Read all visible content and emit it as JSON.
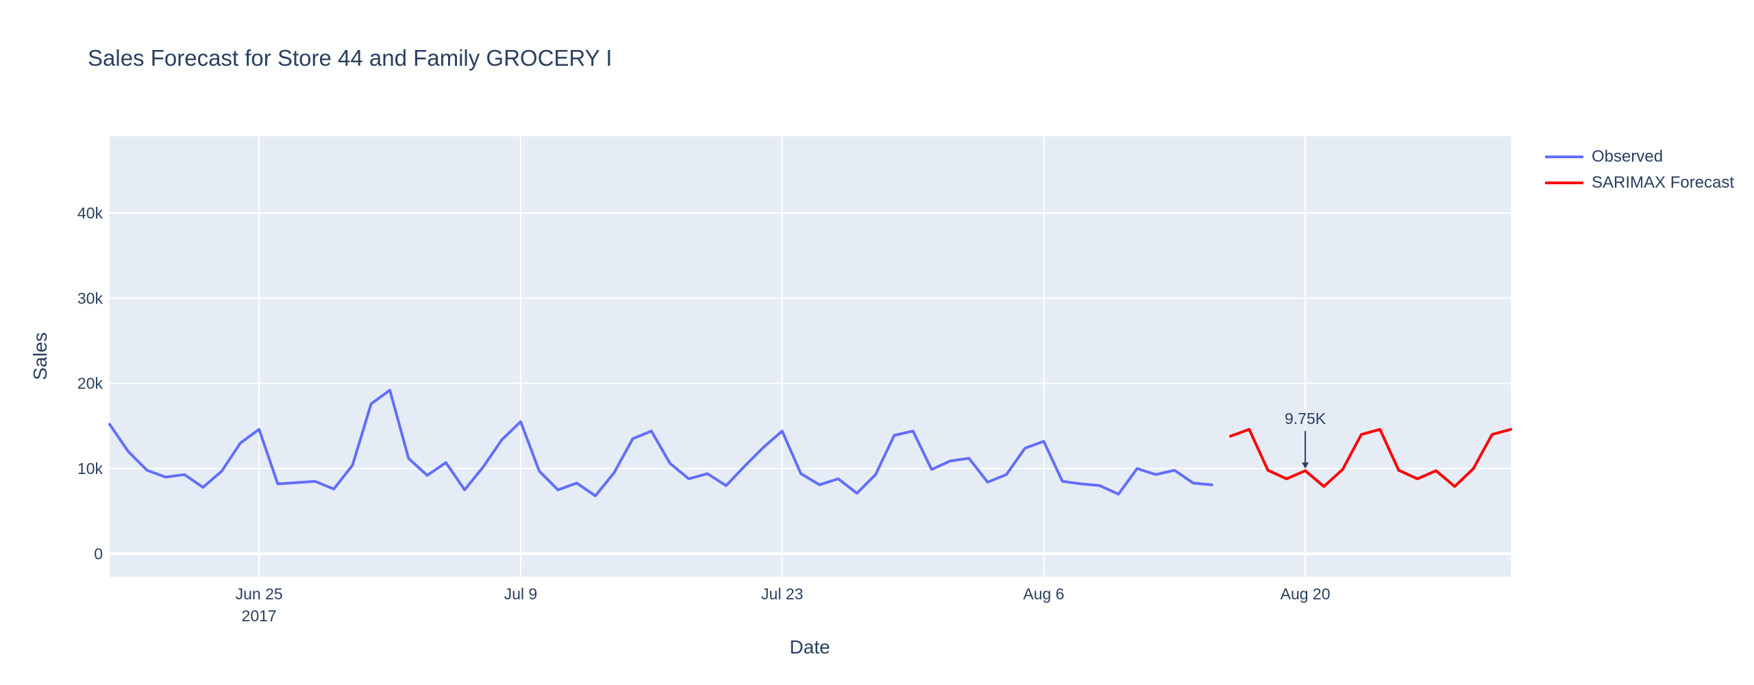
{
  "chart_data": {
    "type": "line",
    "title": "Sales Forecast for Store 44 and Family GROCERY I",
    "xlabel": "Date",
    "ylabel": "Sales",
    "x_range": [
      "2017-06-17",
      "2017-08-31"
    ],
    "ylim": [
      -2700,
      49000
    ],
    "x_ticks": [
      {
        "date": "2017-06-25",
        "label": "Jun 25",
        "sublabel": "2017"
      },
      {
        "date": "2017-07-09",
        "label": "Jul 9",
        "sublabel": ""
      },
      {
        "date": "2017-07-23",
        "label": "Jul 23",
        "sublabel": ""
      },
      {
        "date": "2017-08-06",
        "label": "Aug 6",
        "sublabel": ""
      },
      {
        "date": "2017-08-20",
        "label": "Aug 20",
        "sublabel": ""
      }
    ],
    "y_ticks": [
      {
        "value": 0,
        "label": "0"
      },
      {
        "value": 10000,
        "label": "10k"
      },
      {
        "value": 20000,
        "label": "20k"
      },
      {
        "value": 30000,
        "label": "30k"
      },
      {
        "value": 40000,
        "label": "40k"
      }
    ],
    "grid": true,
    "legend_position": "top-right",
    "series": [
      {
        "name": "Observed",
        "color": "#636efa",
        "x": [
          "2017-06-17",
          "2017-06-18",
          "2017-06-19",
          "2017-06-20",
          "2017-06-21",
          "2017-06-22",
          "2017-06-23",
          "2017-06-24",
          "2017-06-25",
          "2017-06-26",
          "2017-06-28",
          "2017-06-29",
          "2017-06-30",
          "2017-07-01",
          "2017-07-02",
          "2017-07-03",
          "2017-07-04",
          "2017-07-05",
          "2017-07-06",
          "2017-07-07",
          "2017-07-08",
          "2017-07-09",
          "2017-07-10",
          "2017-07-11",
          "2017-07-12",
          "2017-07-13",
          "2017-07-14",
          "2017-07-15",
          "2017-07-16",
          "2017-07-17",
          "2017-07-18",
          "2017-07-19",
          "2017-07-20",
          "2017-07-21",
          "2017-07-22",
          "2017-07-23",
          "2017-07-24",
          "2017-07-25",
          "2017-07-26",
          "2017-07-27",
          "2017-07-28",
          "2017-07-29",
          "2017-07-30",
          "2017-07-31",
          "2017-08-01",
          "2017-08-02",
          "2017-08-03",
          "2017-08-04",
          "2017-08-05",
          "2017-08-06",
          "2017-08-07",
          "2017-08-08",
          "2017-08-09",
          "2017-08-10",
          "2017-08-11",
          "2017-08-12",
          "2017-08-13",
          "2017-08-14",
          "2017-08-15"
        ],
        "y": [
          15200,
          12000,
          9800,
          9000,
          9300,
          7800,
          9700,
          13000,
          14600,
          8200,
          8500,
          7600,
          10400,
          17600,
          19200,
          11200,
          9200,
          10700,
          7500,
          10200,
          13400,
          15500,
          9700,
          7500,
          8300,
          6800,
          9500,
          13500,
          14400,
          10600,
          8800,
          9400,
          8000,
          10300,
          12500,
          14400,
          9400,
          8100,
          8800,
          7100,
          9300,
          13900,
          14400,
          9900,
          10900,
          11200,
          8400,
          9300,
          12400,
          13200,
          8500,
          8200,
          8000,
          7000,
          10000,
          9300,
          9800,
          8300,
          8100
        ]
      },
      {
        "name": "SARIMAX Forecast",
        "color": "#ff0000",
        "x": [
          "2017-08-16",
          "2017-08-17",
          "2017-08-18",
          "2017-08-19",
          "2017-08-20",
          "2017-08-21",
          "2017-08-22",
          "2017-08-23",
          "2017-08-24",
          "2017-08-25",
          "2017-08-26",
          "2017-08-27",
          "2017-08-28",
          "2017-08-29",
          "2017-08-30",
          "2017-08-31"
        ],
        "y": [
          13800,
          14600,
          9800,
          8800,
          9750,
          7900,
          9900,
          14000,
          14600,
          9800,
          8800,
          9750,
          7900,
          10000,
          14000,
          14600
        ]
      }
    ],
    "annotations": [
      {
        "x": "2017-08-20",
        "y": 9750,
        "text": "9.75K"
      }
    ]
  }
}
